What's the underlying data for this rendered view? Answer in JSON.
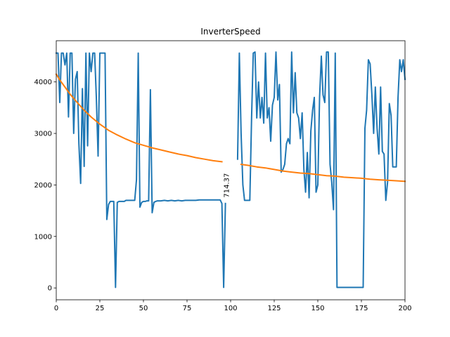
{
  "chart_data": {
    "type": "line",
    "title": "InverterSpeed",
    "xlabel": "",
    "ylabel": "",
    "xlim": [
      0,
      200
    ],
    "ylim": [
      -230,
      4800
    ],
    "xticks": [
      0,
      25,
      50,
      75,
      100,
      125,
      150,
      175,
      200
    ],
    "yticks": [
      0,
      1000,
      2000,
      3000,
      4000
    ],
    "grid": false,
    "annotations": [
      {
        "text": "714.37",
        "x": 99,
        "y": 1990,
        "rotation": -90
      }
    ],
    "series": [
      {
        "color": "#1f77b4",
        "points": [
          [
            0,
            4560
          ],
          [
            1,
            4560
          ],
          [
            2,
            3600
          ],
          [
            3,
            4560
          ],
          [
            4,
            4560
          ],
          [
            5,
            4330
          ],
          [
            6,
            4560
          ],
          [
            7,
            3320
          ],
          [
            8,
            4560
          ],
          [
            9,
            4560
          ],
          [
            10,
            3000
          ],
          [
            11,
            4050
          ],
          [
            12,
            4200
          ],
          [
            13,
            2800
          ],
          [
            14,
            2030
          ],
          [
            15,
            3870
          ],
          [
            16,
            2360
          ],
          [
            17,
            4560
          ],
          [
            18,
            2760
          ],
          [
            19,
            4560
          ],
          [
            20,
            4200
          ],
          [
            21,
            4560
          ],
          [
            22,
            4560
          ],
          [
            23,
            3700
          ],
          [
            24,
            2560
          ],
          [
            25,
            4560
          ],
          [
            26,
            4560
          ],
          [
            27,
            4560
          ],
          [
            28,
            4560
          ],
          [
            29,
            1330
          ],
          [
            30,
            1620
          ],
          [
            31,
            1680
          ],
          [
            32,
            1680
          ],
          [
            33,
            1680
          ],
          [
            34,
            10
          ],
          [
            35,
            1660
          ],
          [
            36,
            1680
          ],
          [
            37,
            1680
          ],
          [
            38,
            1680
          ],
          [
            39,
            1680
          ],
          [
            40,
            1700
          ],
          [
            41,
            1700
          ],
          [
            42,
            1700
          ],
          [
            43,
            1700
          ],
          [
            44,
            1700
          ],
          [
            45,
            1700
          ],
          [
            46,
            2100
          ],
          [
            47,
            4560
          ],
          [
            48,
            1570
          ],
          [
            49,
            1660
          ],
          [
            50,
            1680
          ],
          [
            51,
            1680
          ],
          [
            52,
            1690
          ],
          [
            53,
            1690
          ],
          [
            54,
            3850
          ],
          [
            55,
            1460
          ],
          [
            56,
            1660
          ],
          [
            57,
            1680
          ],
          [
            58,
            1690
          ],
          [
            60,
            1690
          ],
          [
            62,
            1700
          ],
          [
            64,
            1690
          ],
          [
            66,
            1700
          ],
          [
            68,
            1690
          ],
          [
            70,
            1700
          ],
          [
            72,
            1690
          ],
          [
            74,
            1700
          ],
          [
            76,
            1700
          ],
          [
            78,
            1700
          ],
          [
            80,
            1700
          ],
          [
            82,
            1710
          ],
          [
            84,
            1710
          ],
          [
            86,
            1710
          ],
          [
            88,
            1710
          ],
          [
            90,
            1710
          ],
          [
            92,
            1710
          ],
          [
            94,
            1710
          ],
          [
            95,
            1640
          ],
          [
            96,
            10
          ],
          [
            97,
            1640
          ],
          null,
          [
            104,
            2500
          ],
          [
            105,
            4560
          ],
          [
            106,
            3000
          ],
          [
            107,
            2000
          ],
          [
            108,
            1700
          ],
          [
            109,
            1700
          ],
          [
            110,
            1700
          ],
          [
            111,
            1700
          ],
          [
            112,
            3300
          ],
          [
            113,
            4560
          ],
          [
            114,
            4580
          ],
          [
            115,
            3300
          ],
          [
            116,
            4000
          ],
          [
            117,
            3300
          ],
          [
            118,
            3700
          ],
          [
            119,
            3200
          ],
          [
            120,
            4560
          ],
          [
            121,
            3300
          ],
          [
            122,
            3500
          ],
          [
            123,
            2850
          ],
          [
            124,
            3550
          ],
          [
            125,
            3700
          ],
          [
            126,
            4580
          ],
          [
            127,
            3650
          ],
          [
            128,
            3950
          ],
          [
            129,
            2250
          ],
          [
            130,
            2300
          ],
          [
            131,
            2400
          ],
          [
            132,
            2800
          ],
          [
            133,
            2900
          ],
          [
            134,
            2800
          ],
          [
            135,
            4580
          ],
          [
            136,
            3400
          ],
          [
            137,
            4180
          ],
          [
            138,
            3400
          ],
          [
            139,
            3300
          ],
          [
            140,
            2900
          ],
          [
            141,
            3400
          ],
          [
            142,
            2300
          ],
          [
            143,
            1860
          ],
          [
            144,
            2630
          ],
          [
            145,
            1750
          ],
          [
            146,
            3050
          ],
          [
            147,
            3450
          ],
          [
            148,
            3700
          ],
          [
            149,
            1860
          ],
          [
            150,
            2000
          ],
          [
            151,
            3700
          ],
          [
            152,
            4500
          ],
          [
            153,
            3750
          ],
          [
            154,
            3600
          ],
          [
            155,
            4580
          ],
          [
            156,
            4580
          ],
          [
            157,
            2400
          ],
          [
            158,
            2050
          ],
          [
            159,
            1520
          ],
          [
            160,
            4560
          ],
          [
            161,
            10
          ],
          [
            162,
            10
          ],
          [
            165,
            10
          ],
          [
            170,
            10
          ],
          [
            175,
            10
          ],
          [
            176,
            10
          ],
          [
            177,
            3100
          ],
          [
            178,
            3450
          ],
          [
            179,
            4430
          ],
          [
            180,
            4350
          ],
          [
            181,
            3750
          ],
          [
            182,
            3000
          ],
          [
            183,
            3900
          ],
          [
            184,
            3100
          ],
          [
            185,
            2600
          ],
          [
            186,
            3900
          ],
          [
            187,
            2650
          ],
          [
            188,
            2600
          ],
          [
            189,
            1700
          ],
          [
            190,
            2050
          ],
          [
            191,
            3580
          ],
          [
            192,
            3350
          ],
          [
            193,
            2350
          ],
          [
            194,
            2350
          ],
          [
            195,
            2350
          ],
          [
            196,
            3700
          ],
          [
            197,
            4430
          ],
          [
            198,
            4200
          ],
          [
            199,
            4430
          ],
          [
            200,
            4050
          ]
        ]
      },
      {
        "color": "#ff7f0e",
        "points": [
          [
            0,
            4150
          ],
          [
            2,
            4040
          ],
          [
            5,
            3900
          ],
          [
            8,
            3760
          ],
          [
            12,
            3600
          ],
          [
            16,
            3450
          ],
          [
            20,
            3320
          ],
          [
            25,
            3180
          ],
          [
            30,
            3060
          ],
          [
            35,
            2970
          ],
          [
            40,
            2890
          ],
          [
            45,
            2820
          ],
          [
            50,
            2770
          ],
          [
            55,
            2720
          ],
          [
            60,
            2680
          ],
          [
            65,
            2640
          ],
          [
            70,
            2600
          ],
          [
            75,
            2570
          ],
          [
            80,
            2530
          ],
          [
            85,
            2500
          ],
          [
            90,
            2470
          ],
          [
            95,
            2450
          ],
          null,
          [
            106,
            2400
          ],
          [
            110,
            2380
          ],
          [
            115,
            2350
          ],
          [
            120,
            2330
          ],
          [
            125,
            2300
          ],
          [
            130,
            2270
          ],
          [
            135,
            2250
          ],
          [
            140,
            2230
          ],
          [
            145,
            2220
          ],
          [
            150,
            2200
          ],
          [
            155,
            2180
          ],
          [
            160,
            2170
          ],
          [
            165,
            2150
          ],
          [
            170,
            2140
          ],
          [
            175,
            2130
          ],
          [
            180,
            2110
          ],
          [
            185,
            2100
          ],
          [
            190,
            2090
          ],
          [
            195,
            2080
          ],
          [
            200,
            2070
          ]
        ]
      }
    ]
  }
}
